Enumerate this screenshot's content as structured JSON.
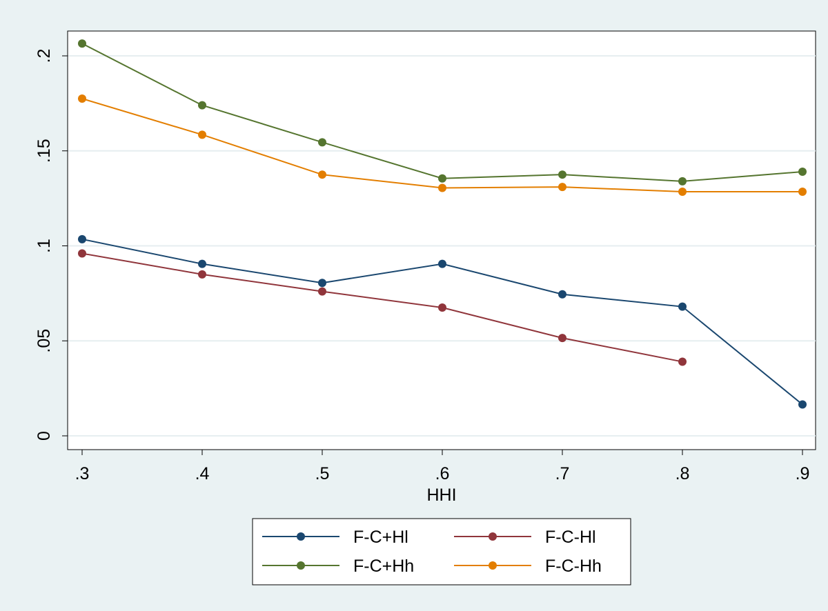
{
  "chart_data": {
    "type": "line",
    "title": "",
    "xlabel": "HHI",
    "ylabel": "",
    "x": [
      0.3,
      0.4,
      0.5,
      0.6,
      0.7,
      0.8,
      0.9
    ],
    "xlim": [
      0.3,
      0.9
    ],
    "ylim": [
      0,
      0.2
    ],
    "x_ticks": [
      {
        "value": 0.3,
        "label": ".3"
      },
      {
        "value": 0.4,
        "label": ".4"
      },
      {
        "value": 0.5,
        "label": ".5"
      },
      {
        "value": 0.6,
        "label": ".6"
      },
      {
        "value": 0.7,
        "label": ".7"
      },
      {
        "value": 0.8,
        "label": ".8"
      },
      {
        "value": 0.9,
        "label": ".9"
      }
    ],
    "y_ticks": [
      {
        "value": 0,
        "label": "0"
      },
      {
        "value": 0.05,
        "label": ".05"
      },
      {
        "value": 0.1,
        "label": ".1"
      },
      {
        "value": 0.15,
        "label": ".15"
      },
      {
        "value": 0.2,
        "label": ".2"
      }
    ],
    "grid": "horizontal",
    "legend_position": "bottom",
    "series": [
      {
        "name": "F-C+Hl",
        "color": "#1a476f",
        "values": [
          0.1035,
          0.0905,
          0.0805,
          0.0905,
          0.0745,
          0.068,
          0.0165
        ]
      },
      {
        "name": "F-C-Hl",
        "color": "#90353b",
        "values": [
          0.096,
          0.085,
          0.076,
          0.0675,
          0.0515,
          0.039,
          null
        ]
      },
      {
        "name": "F-C+Hh",
        "color": "#55752f",
        "values": [
          0.2065,
          0.174,
          0.1545,
          0.1355,
          0.1375,
          0.134,
          0.139
        ]
      },
      {
        "name": "F-C-Hh",
        "color": "#e37e00",
        "values": [
          0.1775,
          0.1585,
          0.1375,
          0.1305,
          0.131,
          0.1285,
          0.1285
        ]
      }
    ]
  }
}
